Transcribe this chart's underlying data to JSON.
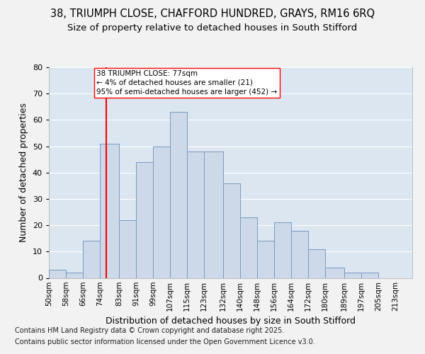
{
  "title_line1": "38, TRIUMPH CLOSE, CHAFFORD HUNDRED, GRAYS, RM16 6RQ",
  "title_line2": "Size of property relative to detached houses in South Stifford",
  "xlabel": "Distribution of detached houses by size in South Stifford",
  "ylabel": "Number of detached properties",
  "bar_labels": [
    "50sqm",
    "58sqm",
    "66sqm",
    "74sqm",
    "83sqm",
    "91sqm",
    "99sqm",
    "107sqm",
    "115sqm",
    "123sqm",
    "132sqm",
    "140sqm",
    "148sqm",
    "156sqm",
    "164sqm",
    "172sqm",
    "180sqm",
    "189sqm",
    "197sqm",
    "205sqm",
    "213sqm"
  ],
  "bar_values": [
    3,
    2,
    14,
    51,
    22,
    44,
    50,
    63,
    48,
    48,
    36,
    23,
    14,
    21,
    18,
    11,
    4,
    2,
    2,
    0,
    0
  ],
  "bar_color": "#cdd9e8",
  "bar_edge_color": "#7a9bbf",
  "background_color": "#dce6f0",
  "fig_background": "#f2f2f2",
  "red_line_x": 77,
  "bin_edges": [
    50,
    58,
    66,
    74,
    83,
    91,
    99,
    107,
    115,
    123,
    132,
    140,
    148,
    156,
    164,
    172,
    180,
    189,
    197,
    205,
    213,
    221
  ],
  "annotation_text": "38 TRIUMPH CLOSE: 77sqm\n← 4% of detached houses are smaller (21)\n95% of semi-detached houses are larger (452) →",
  "ylim": [
    0,
    80
  ],
  "yticks": [
    0,
    10,
    20,
    30,
    40,
    50,
    60,
    70,
    80
  ],
  "footer_line1": "Contains HM Land Registry data © Crown copyright and database right 2025.",
  "footer_line2": "Contains public sector information licensed under the Open Government Licence v3.0.",
  "grid_color": "#ffffff",
  "title_fontsize": 10.5,
  "subtitle_fontsize": 9.5,
  "axis_label_fontsize": 9,
  "tick_fontsize": 7.5,
  "footer_fontsize": 7,
  "annotation_fontsize": 7.5
}
